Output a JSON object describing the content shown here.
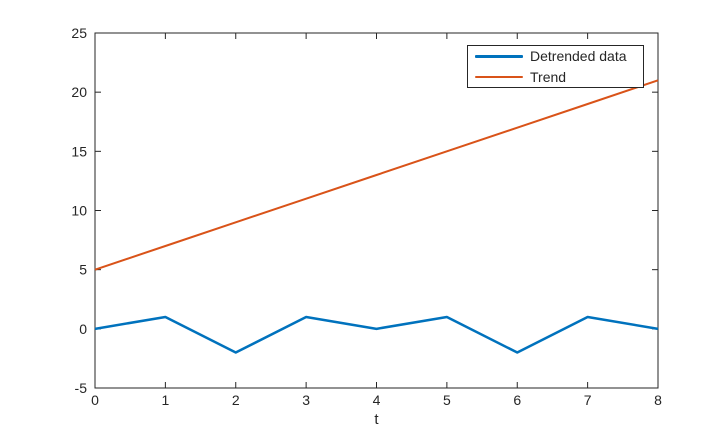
{
  "figure": {
    "background": "#ffffff",
    "axis_color": "#262626",
    "text_color": "#262626"
  },
  "chart_data": {
    "type": "line",
    "title": "",
    "xlabel": "t",
    "ylabel": "",
    "x": [
      0,
      1,
      2,
      3,
      4,
      5,
      6,
      7,
      8
    ],
    "series": [
      {
        "name": "Detrended data",
        "color": "#0072BD",
        "line_width": 2.5,
        "values": [
          0,
          1,
          -2,
          1,
          0,
          1,
          -2,
          1,
          0
        ]
      },
      {
        "name": "Trend",
        "color": "#D95319",
        "line_width": 2,
        "values": [
          5,
          7,
          9,
          11,
          13,
          15,
          17,
          19,
          21
        ]
      }
    ],
    "xlim": [
      0,
      8
    ],
    "ylim": [
      -5,
      25
    ],
    "xticks": [
      "0",
      "1",
      "2",
      "3",
      "4",
      "5",
      "6",
      "7",
      "8"
    ],
    "yticks": [
      "-5",
      "0",
      "5",
      "10",
      "15",
      "20",
      "25"
    ],
    "grid": false,
    "legend": {
      "position": "northeast",
      "border": true
    }
  }
}
